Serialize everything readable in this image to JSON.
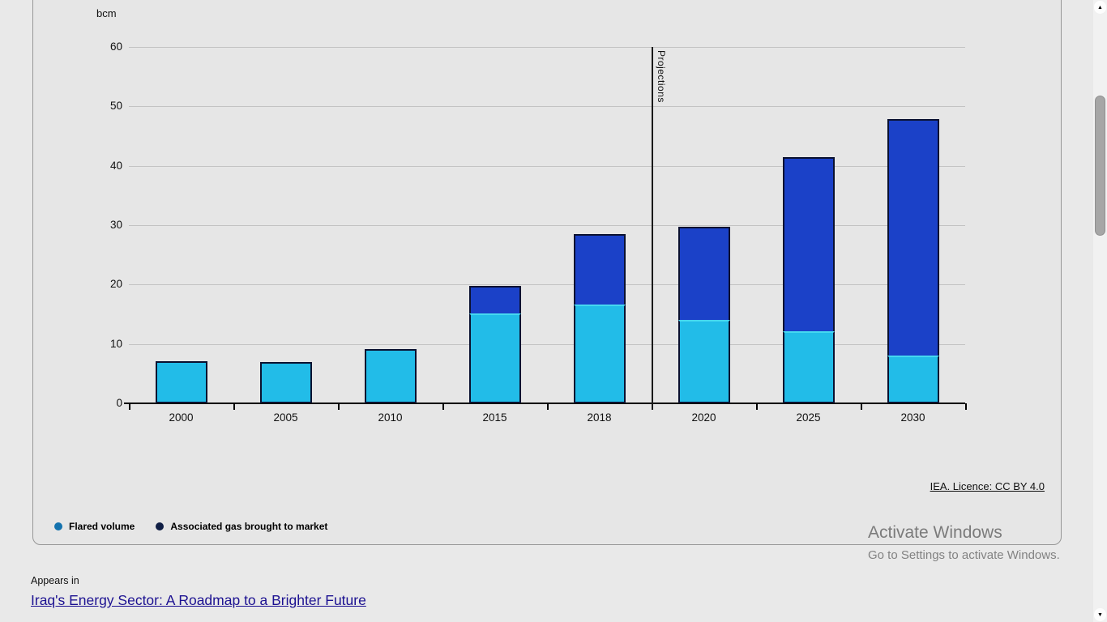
{
  "page": {
    "appears_in_label": "Appears in",
    "appears_in_link": "Iraq's Energy Sector: A Roadmap to a Brighter Future",
    "appears_in_link_color": "#1c1191",
    "watermark_line1": "Activate Windows",
    "watermark_line2": "Go to Settings to activate Windows."
  },
  "card": {
    "licence_link": "IEA. Licence: CC BY 4.0",
    "legend": [
      {
        "label": "Flared volume",
        "dot_color": "#1472ae"
      },
      {
        "label": "Associated gas brought to market",
        "dot_color": "#101f45"
      }
    ]
  },
  "chart_data": {
    "type": "bar",
    "stacked": true,
    "unit_label": "bcm",
    "categories": [
      "2000",
      "2005",
      "2010",
      "2015",
      "2018",
      "2020",
      "2025",
      "2030"
    ],
    "series": [
      {
        "name": "Flared volume",
        "color": "#22bce8",
        "values": [
          7.1,
          7.0,
          9.1,
          15.1,
          16.7,
          14.1,
          12.1,
          8.0
        ]
      },
      {
        "name": "Associated gas brought to market",
        "color": "#1b41c8",
        "values": [
          0,
          0,
          0,
          4.6,
          11.9,
          15.7,
          29.3,
          39.8
        ]
      }
    ],
    "totals": [
      7.1,
      7.0,
      9.1,
      19.7,
      28.6,
      29.8,
      41.4,
      47.8
    ],
    "ylim": [
      0,
      60
    ],
    "yticks": [
      0,
      10,
      20,
      30,
      40,
      50,
      60
    ],
    "grid": true,
    "legend_position": "bottom-left",
    "annotation": {
      "label": "Projections",
      "after_category_index": 4
    },
    "bar_border_color": "#0a1130",
    "bar_top_highlight_color": "#45d8f0",
    "gridline_color": "#c3c3c3",
    "axis_color": "#000000"
  },
  "scrollbar": {
    "up_arrow": "▲",
    "down_arrow": "▼"
  }
}
